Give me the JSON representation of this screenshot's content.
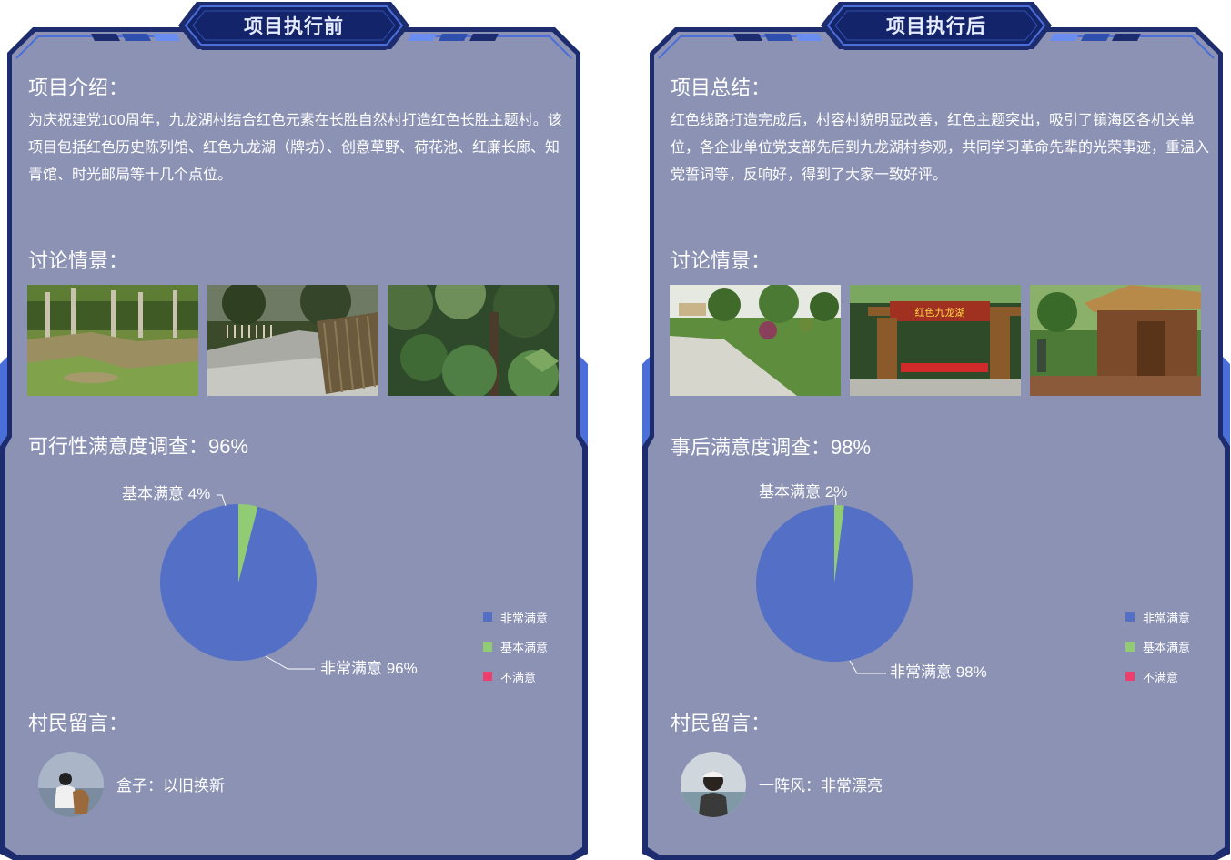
{
  "colors": {
    "panel_bg": "#8b92b4",
    "frame_dark": "#1c2c6e",
    "frame_accent": "#4a6fd8",
    "very_satisfied": "#5470c6",
    "basic_satisfied": "#91cc75",
    "not_satisfied": "#ee3f6c"
  },
  "before": {
    "tab_title": "项目执行前",
    "intro_title": "项目介绍：",
    "intro_text": "为庆祝建党100周年，九龙湖村结合红色元素在长胜自然村打造红色长胜主题村。该项目包括红色历史陈列馆、红色九龙湖（牌坊）、创意草野、荷花池、红廉长廊、知青馆、时光邮局等十几个点位。",
    "discussion_title": "讨论情景：",
    "survey_title": "可行性满意度调查：96%",
    "comments_title": "村民留言：",
    "comment_text": "盒子：以旧换新",
    "avatar_icon": "girl-with-dog-avatar"
  },
  "after": {
    "tab_title": "项目执行后",
    "intro_title": "项目总结：",
    "intro_text": "红色线路打造完成后，村容村貌明显改善，红色主题突出，吸引了镇海区各机关单位，各企业单位党支部先后到九龙湖村参观，共同学习革命先辈的光荣事迹，重温入党誓词等，反响好，得到了大家一致好评。",
    "discussion_title": "讨论情景：",
    "survey_title": "事后满意度调查：98%",
    "comments_title": "村民留言：",
    "comment_text": "一阵风：非常漂亮",
    "avatar_icon": "person-in-cap-avatar",
    "photo_sign_text": "红色九龙湖"
  },
  "chart_data": [
    {
      "type": "pie",
      "series": [
        {
          "values": [
            96,
            4,
            0
          ]
        }
      ],
      "categories": [
        "非常满意",
        "基本满意",
        "不满意"
      ],
      "data_labels": [
        "非常满意  96%",
        "基本满意  4%"
      ],
      "legend": [
        "非常满意",
        "基本满意",
        "不满意"
      ],
      "legend_position": "right-bottom"
    },
    {
      "type": "pie",
      "series": [
        {
          "values": [
            98,
            2,
            0
          ]
        }
      ],
      "categories": [
        "非常满意",
        "基本满意",
        "不满意"
      ],
      "data_labels": [
        "非常满意  98%",
        "基本满意  2%"
      ],
      "legend": [
        "非常满意",
        "基本满意",
        "不满意"
      ],
      "legend_position": "right-bottom"
    }
  ]
}
